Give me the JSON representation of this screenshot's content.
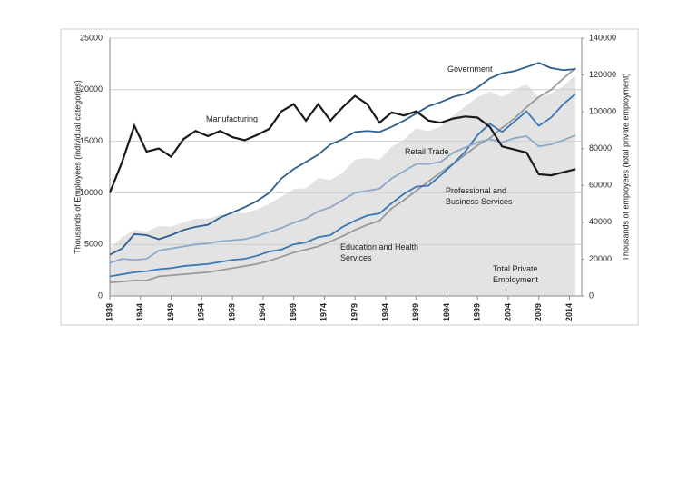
{
  "chart_data": {
    "type": "line",
    "ylabel": "Thousands of Employees (individual categories)",
    "y2label": "Thousands of employees (total private employment)",
    "x": [
      1939,
      1941,
      1943,
      1945,
      1947,
      1949,
      1951,
      1953,
      1955,
      1957,
      1959,
      1961,
      1963,
      1965,
      1967,
      1969,
      1971,
      1973,
      1975,
      1977,
      1979,
      1981,
      1983,
      1985,
      1987,
      1989,
      1991,
      1993,
      1995,
      1997,
      1999,
      2001,
      2003,
      2005,
      2007,
      2009,
      2011,
      2013,
      2015
    ],
    "xlim": [
      1939,
      2016
    ],
    "xticks": [
      1939,
      1944,
      1949,
      1954,
      1959,
      1964,
      1969,
      1974,
      1979,
      1984,
      1989,
      1994,
      1999,
      2004,
      2009,
      2014
    ],
    "ylim": [
      0,
      25000
    ],
    "yticks": [
      0,
      5000,
      10000,
      15000,
      20000,
      25000
    ],
    "y2lim": [
      0,
      140000
    ],
    "y2ticks": [
      0,
      20000,
      40000,
      60000,
      80000,
      100000,
      120000,
      140000
    ],
    "grid": true,
    "series": [
      {
        "name": "Total Private Employment",
        "type": "area",
        "axis": "y2",
        "color": "#e3e3e3",
        "values": [
          26000,
          32000,
          36000,
          35000,
          38000,
          37500,
          40000,
          42000,
          42000,
          44000,
          45000,
          45000,
          47000,
          50000,
          54000,
          58000,
          58500,
          64000,
          63000,
          67000,
          74000,
          75000,
          74000,
          81000,
          85000,
          91000,
          89500,
          92000,
          98000,
          103000,
          108000,
          111000,
          108000,
          112000,
          115000,
          108000,
          110000,
          114000,
          120000
        ]
      },
      {
        "name": "Education and Health Services",
        "color": "#9a9a9a",
        "values": [
          1300,
          1400,
          1500,
          1500,
          1900,
          2000,
          2100,
          2200,
          2300,
          2500,
          2700,
          2900,
          3100,
          3400,
          3800,
          4200,
          4500,
          4800,
          5300,
          5800,
          6400,
          6900,
          7300,
          8500,
          9300,
          10200,
          11100,
          12000,
          12800,
          13700,
          14600,
          15300,
          16300,
          17200,
          18300,
          19300,
          20000,
          21100,
          22100
        ]
      },
      {
        "name": "Professional and Business Services",
        "color": "#3a78b8",
        "values": [
          1900,
          2100,
          2300,
          2400,
          2600,
          2700,
          2900,
          3000,
          3100,
          3300,
          3500,
          3600,
          3900,
          4300,
          4500,
          5000,
          5200,
          5700,
          5900,
          6700,
          7300,
          7800,
          8000,
          9000,
          9900,
          10600,
          10700,
          11700,
          12800,
          14000,
          15600,
          16700,
          15900,
          16900,
          17900,
          16500,
          17300,
          18600,
          19600
        ]
      },
      {
        "name": "Retail Trade",
        "color": "#8ea9c8",
        "values": [
          3200,
          3600,
          3500,
          3600,
          4400,
          4600,
          4800,
          5000,
          5100,
          5300,
          5400,
          5500,
          5800,
          6200,
          6600,
          7100,
          7500,
          8200,
          8600,
          9300,
          10000,
          10200,
          10400,
          11400,
          12100,
          12800,
          12800,
          13000,
          13900,
          14400,
          14900,
          15200,
          14900,
          15300,
          15500,
          14500,
          14700,
          15100,
          15600
        ]
      },
      {
        "name": "Government",
        "color": "#2e5f8f",
        "values": [
          4000,
          4600,
          6000,
          5900,
          5500,
          5900,
          6400,
          6700,
          6900,
          7600,
          8100,
          8600,
          9200,
          10000,
          11400,
          12300,
          13000,
          13700,
          14700,
          15200,
          15900,
          16000,
          15900,
          16400,
          17000,
          17700,
          18400,
          18800,
          19300,
          19600,
          20200,
          21100,
          21600,
          21800,
          22200,
          22600,
          22100,
          21900,
          22000
        ]
      },
      {
        "name": "Manufacturing",
        "color": "#1a1a1a",
        "values": [
          10000,
          13000,
          16500,
          14000,
          14300,
          13500,
          15200,
          16000,
          15500,
          16000,
          15400,
          15100,
          15600,
          16200,
          17900,
          18600,
          17000,
          18600,
          17000,
          18300,
          19400,
          18600,
          16800,
          17800,
          17500,
          17900,
          17000,
          16800,
          17200,
          17400,
          17300,
          16400,
          14500,
          14200,
          13900,
          11800,
          11700,
          12000,
          12300
        ]
      }
    ]
  }
}
